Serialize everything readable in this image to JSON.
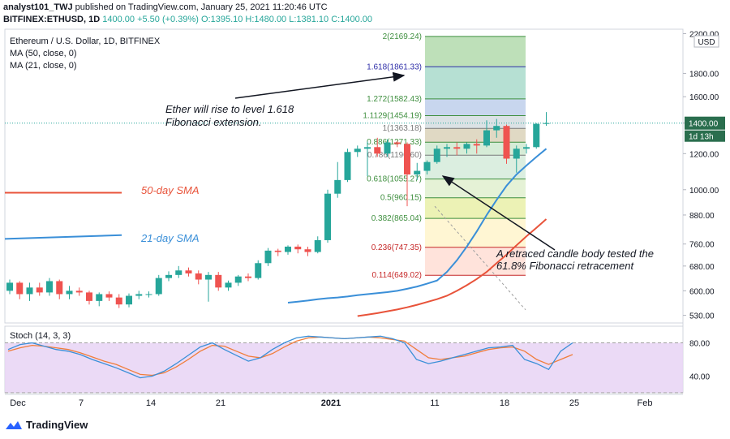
{
  "header": {
    "line1_user": "analyst101_TWJ",
    "line1_text": "published on TradingView.com, January 25, 2021 11:20:46 UTC",
    "line2_symbol": "BITFINEX:ETHUSD, 1D",
    "line2_price": "1400.00",
    "line2_change": "+5.50 (+0.39%)",
    "line2_ohlc": "O:1395.10  H:1480.00  L:1381.10  C:1400.00"
  },
  "legend": {
    "title": "Ethereum / U.S. Dollar, 1D, BITFINEX",
    "ma1": "MA (50, close, 0)",
    "ma2": "MA (21, close, 0)"
  },
  "price_axis": {
    "currency": "USD",
    "current_price": "1400.00",
    "countdown": "1d 13h",
    "top_label": "2200.00"
  },
  "annotations": {
    "fib_note_line1": "Ether will rise to level 1.618",
    "fib_note_line2": "Fibonacci extension.",
    "retrace_line1": "A retraced candle body tested the",
    "retrace_line2": "61.8% Fibonacci retracement",
    "sma50_label": "50-day SMA",
    "sma21_label": "21-day SMA"
  },
  "stoch": {
    "label": "Stoch (14, 3, 3)",
    "levels": [
      "80.00",
      "40.00"
    ]
  },
  "footer": {
    "brand": "TradingView"
  },
  "colors": {
    "up": "#26a69a",
    "down": "#ef5350",
    "sma50": "#e8533a",
    "sma21": "#3a8fd8",
    "stoch_k": "#3a8fd8",
    "stoch_d": "#f07d3a",
    "stoch_bg": "#e7d4f5",
    "fib_blue": "#2e2ea8",
    "fib_green": "#4caf50",
    "fib_red": "#c62828"
  },
  "chart_data": {
    "type": "candlestick",
    "title": "Ethereum / U.S. Dollar, 1D, BITFINEX",
    "x_ticks": [
      "Dec",
      "7",
      "14",
      "21",
      "2021",
      "11",
      "18",
      "25",
      "Feb"
    ],
    "y_ticks": [
      2200,
      1800,
      1600,
      1400,
      1200,
      1000,
      880,
      760,
      680,
      600,
      530
    ],
    "y_scale": "log",
    "ylim": [
      510,
      2250
    ],
    "candles": [
      {
        "o": 600,
        "c": 625,
        "h": 635,
        "l": 590
      },
      {
        "o": 625,
        "c": 590,
        "h": 630,
        "l": 575
      },
      {
        "o": 590,
        "c": 610,
        "h": 625,
        "l": 570
      },
      {
        "o": 610,
        "c": 595,
        "h": 625,
        "l": 585
      },
      {
        "o": 595,
        "c": 630,
        "h": 640,
        "l": 585
      },
      {
        "o": 630,
        "c": 590,
        "h": 635,
        "l": 575
      },
      {
        "o": 590,
        "c": 600,
        "h": 615,
        "l": 575
      },
      {
        "o": 600,
        "c": 595,
        "h": 610,
        "l": 585
      },
      {
        "o": 595,
        "c": 570,
        "h": 600,
        "l": 560
      },
      {
        "o": 570,
        "c": 590,
        "h": 595,
        "l": 555
      },
      {
        "o": 590,
        "c": 580,
        "h": 598,
        "l": 570
      },
      {
        "o": 580,
        "c": 560,
        "h": 590,
        "l": 550
      },
      {
        "o": 560,
        "c": 585,
        "h": 592,
        "l": 552
      },
      {
        "o": 585,
        "c": 590,
        "h": 600,
        "l": 575
      },
      {
        "o": 590,
        "c": 590,
        "h": 598,
        "l": 580
      },
      {
        "o": 590,
        "c": 640,
        "h": 650,
        "l": 585
      },
      {
        "o": 640,
        "c": 650,
        "h": 662,
        "l": 630
      },
      {
        "o": 650,
        "c": 665,
        "h": 680,
        "l": 640
      },
      {
        "o": 665,
        "c": 655,
        "h": 675,
        "l": 645
      },
      {
        "o": 655,
        "c": 635,
        "h": 665,
        "l": 620
      },
      {
        "o": 635,
        "c": 650,
        "h": 660,
        "l": 568
      },
      {
        "o": 650,
        "c": 610,
        "h": 660,
        "l": 600
      },
      {
        "o": 610,
        "c": 625,
        "h": 632,
        "l": 600
      },
      {
        "o": 625,
        "c": 645,
        "h": 650,
        "l": 615
      },
      {
        "o": 645,
        "c": 640,
        "h": 655,
        "l": 630
      },
      {
        "o": 640,
        "c": 690,
        "h": 700,
        "l": 635
      },
      {
        "o": 690,
        "c": 735,
        "h": 745,
        "l": 680
      },
      {
        "o": 735,
        "c": 730,
        "h": 742,
        "l": 715
      },
      {
        "o": 730,
        "c": 750,
        "h": 755,
        "l": 720
      },
      {
        "o": 750,
        "c": 740,
        "h": 758,
        "l": 725
      },
      {
        "o": 740,
        "c": 730,
        "h": 750,
        "l": 715
      },
      {
        "o": 730,
        "c": 775,
        "h": 790,
        "l": 725
      },
      {
        "o": 775,
        "c": 980,
        "h": 1000,
        "l": 765
      },
      {
        "o": 980,
        "c": 1050,
        "h": 1150,
        "l": 960
      },
      {
        "o": 1050,
        "c": 1210,
        "h": 1230,
        "l": 1040
      },
      {
        "o": 1210,
        "c": 1230,
        "h": 1250,
        "l": 1180
      },
      {
        "o": 1230,
        "c": 1240,
        "h": 1275,
        "l": 1070
      },
      {
        "o": 1240,
        "c": 1200,
        "h": 1300,
        "l": 1180
      },
      {
        "o": 1200,
        "c": 1270,
        "h": 1290,
        "l": 1180
      },
      {
        "o": 1270,
        "c": 1260,
        "h": 1280,
        "l": 1240
      },
      {
        "o": 1260,
        "c": 1080,
        "h": 1270,
        "l": 920
      },
      {
        "o": 1080,
        "c": 1100,
        "h": 1145,
        "l": 1050
      },
      {
        "o": 1100,
        "c": 1150,
        "h": 1160,
        "l": 1080
      },
      {
        "o": 1150,
        "c": 1230,
        "h": 1250,
        "l": 1140
      },
      {
        "o": 1230,
        "c": 1240,
        "h": 1260,
        "l": 1180
      },
      {
        "o": 1240,
        "c": 1230,
        "h": 1270,
        "l": 1190
      },
      {
        "o": 1230,
        "c": 1260,
        "h": 1270,
        "l": 1200
      },
      {
        "o": 1260,
        "c": 1250,
        "h": 1290,
        "l": 1200
      },
      {
        "o": 1250,
        "c": 1350,
        "h": 1420,
        "l": 1240
      },
      {
        "o": 1350,
        "c": 1380,
        "h": 1430,
        "l": 1300
      },
      {
        "o": 1380,
        "c": 1170,
        "h": 1390,
        "l": 1140
      },
      {
        "o": 1170,
        "c": 1230,
        "h": 1250,
        "l": 1090
      },
      {
        "o": 1230,
        "c": 1240,
        "h": 1260,
        "l": 1200
      },
      {
        "o": 1240,
        "c": 1395,
        "h": 1400,
        "l": 1230
      },
      {
        "o": 1395,
        "c": 1400,
        "h": 1480,
        "l": 1381
      }
    ],
    "sma21": [
      565,
      568,
      571,
      575,
      578,
      580,
      583,
      587,
      590,
      593,
      596,
      600,
      606,
      613,
      622,
      632,
      660,
      700,
      750,
      810,
      880,
      950,
      1020,
      1080,
      1130,
      1180,
      1230
    ],
    "sma50": [
      528,
      532,
      536,
      541,
      546,
      552,
      559,
      567,
      575,
      585,
      600,
      617,
      637,
      660,
      690,
      720,
      755,
      790,
      825,
      862
    ],
    "fibonacci": {
      "levels": [
        {
          "ratio": "2",
          "value": "2169.24"
        },
        {
          "ratio": "1.618",
          "value": "1861.33"
        },
        {
          "ratio": "1.272",
          "value": "1582.43"
        },
        {
          "ratio": "1.1129",
          "value": "1454.19"
        },
        {
          "ratio": "1",
          "value": "1363.18"
        },
        {
          "ratio": "0.886",
          "value": "1271.33"
        },
        {
          "ratio": "0.786",
          "value": "1190.60"
        },
        {
          "ratio": "0.618",
          "value": "1055.27"
        },
        {
          "ratio": "0.5",
          "value": "960.15"
        },
        {
          "ratio": "0.382",
          "value": "865.04"
        },
        {
          "ratio": "0.236",
          "value": "747.35"
        },
        {
          "ratio": "0.114",
          "value": "649.02"
        }
      ]
    },
    "stoch_k": [
      72,
      78,
      80,
      76,
      72,
      70,
      66,
      60,
      55,
      50,
      44,
      38,
      40,
      46,
      55,
      65,
      75,
      80,
      72,
      65,
      58,
      62,
      72,
      80,
      86,
      88,
      87,
      86,
      85,
      86,
      87,
      88,
      85,
      80,
      60,
      55,
      58,
      62,
      66,
      70,
      74,
      75,
      77,
      60,
      55,
      48,
      70,
      80
    ],
    "stoch_d": [
      70,
      74,
      77,
      76,
      74,
      72,
      68,
      63,
      58,
      54,
      48,
      42,
      41,
      44,
      51,
      60,
      70,
      77,
      76,
      70,
      64,
      62,
      67,
      75,
      82,
      86,
      87,
      86,
      85,
      86,
      87,
      86,
      84,
      82,
      72,
      62,
      60,
      62,
      64,
      68,
      72,
      74,
      75,
      70,
      60,
      54,
      60,
      66
    ]
  }
}
